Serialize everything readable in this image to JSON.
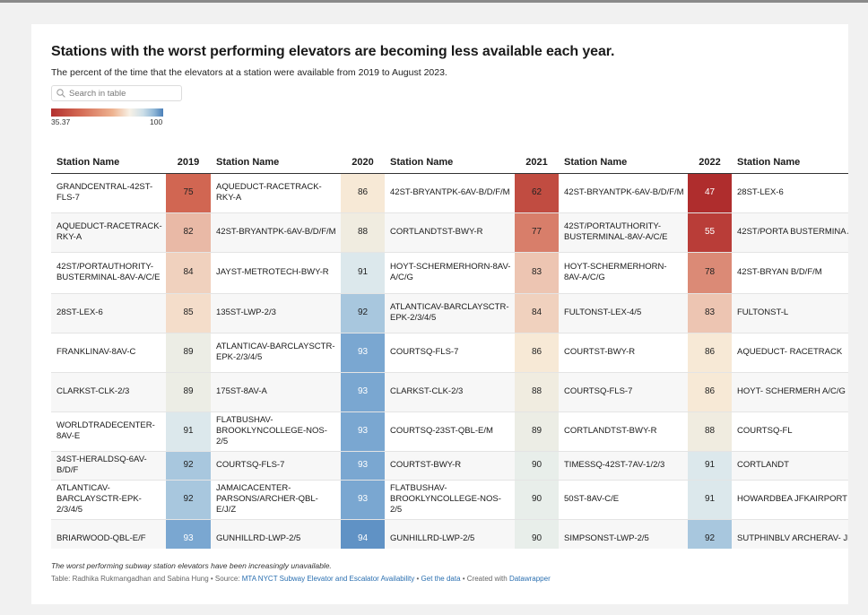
{
  "title": "Stations with the worst performing elevators are becoming less available each year.",
  "subtitle": "The percent of the time that the elevators at a station were available from 2019 to August 2023.",
  "search": {
    "placeholder": "Search in table"
  },
  "legend": {
    "min": "35.37",
    "max": "100"
  },
  "colors": {
    "scale_low": "#b2302f",
    "scale_mid": "#f8f1e6",
    "scale_high": "#4b7fb8",
    "link": "#2a6fb0"
  },
  "chart_data": {
    "type": "table",
    "headers": [
      "Station Name",
      "2019",
      "Station Name",
      "2020",
      "Station Name",
      "2021",
      "Station Name",
      "2022",
      "Station Name"
    ],
    "color_scale": {
      "min": 35.37,
      "max": 100
    },
    "rows": [
      [
        "GRANDCENTRAL-42ST-FLS-7",
        75,
        "AQUEDUCT-RACETRACK-RKY-A",
        86,
        "42ST-BRYANTPK-6AV-B/D/F/M",
        62,
        "42ST-BRYANTPK-6AV-B/D/F/M",
        47,
        "28ST-LEX-6"
      ],
      [
        "AQUEDUCT-RACETRACK-RKY-A",
        82,
        "42ST-BRYANTPK-6AV-B/D/F/M",
        88,
        "CORTLANDTST-BWY-R",
        77,
        "42ST/PORTAUTHORITY-BUSTERMINAL-8AV-A/C/E",
        55,
        "42ST/PORTA BUSTERMINA A/C/E"
      ],
      [
        "42ST/PORTAUTHORITY-BUSTERMINAL-8AV-A/C/E",
        84,
        "JAYST-METROTECH-BWY-R",
        91,
        "HOYT-SCHERMERHORN-8AV-A/C/G",
        83,
        "HOYT-SCHERMERHORN-8AV-A/C/G",
        78,
        "42ST-BRYAN B/D/F/M"
      ],
      [
        "28ST-LEX-6",
        85,
        "135ST-LWP-2/3",
        92,
        "ATLANTICAV-BARCLAYSCTR-EPK-2/3/4/5",
        84,
        "FULTONST-LEX-4/5",
        83,
        "FULTONST-L"
      ],
      [
        "FRANKLINAV-8AV-C",
        89,
        "ATLANTICAV-BARCLAYSCTR-EPK-2/3/4/5",
        93,
        "COURTSQ-FLS-7",
        86,
        "COURTST-BWY-R",
        86,
        "AQUEDUCT- RACETRACK"
      ],
      [
        "CLARKST-CLK-2/3",
        89,
        "175ST-8AV-A",
        93,
        "CLARKST-CLK-2/3",
        88,
        "COURTSQ-FLS-7",
        86,
        "HOYT- SCHERMERH A/C/G"
      ],
      [
        "WORLDTRADECENTER-8AV-E",
        91,
        "FLATBUSHAV-BROOKLYNCOLLEGE-NOS-2/5",
        93,
        "COURTSQ-23ST-QBL-E/M",
        89,
        "CORTLANDTST-BWY-R",
        88,
        "COURTSQ-FL"
      ],
      [
        "34ST-HERALDSQ-6AV-B/D/F",
        92,
        "COURTSQ-FLS-7",
        93,
        "COURTST-BWY-R",
        90,
        "TIMESSQ-42ST-7AV-1/2/3",
        91,
        "CORTLANDT"
      ],
      [
        "ATLANTICAV-BARCLAYSCTR-EPK-2/3/4/5",
        92,
        "JAMAICACENTER-PARSONS/ARCHER-QBL-E/J/Z",
        93,
        "FLATBUSHAV-BROOKLYNCOLLEGE-NOS-2/5",
        90,
        "50ST-8AV-C/E",
        91,
        "HOWARDBEA JFKAIRPORT"
      ],
      [
        "BRIARWOOD-QBL-E/F",
        93,
        "GUNHILLRD-LWP-2/5",
        94,
        "GUNHILLRD-LWP-2/5",
        90,
        "SIMPSONST-LWP-2/5",
        92,
        "SUTPHINBLV ARCHERAV- JFKAIRPORT"
      ]
    ]
  },
  "footer": {
    "note": "The worst performing subway station elevators have been increasingly unavailable.",
    "credit": "Table: Radhika Rukmangadhan and Sabina Hung",
    "source_prefix": " • Source: ",
    "source_link": "MTA NYCT Subway Elevator and Escalator Availability",
    "sep": " • ",
    "data_link": "Get the data",
    "created_prefix": " • Created with ",
    "created_link": "Datawrapper"
  }
}
